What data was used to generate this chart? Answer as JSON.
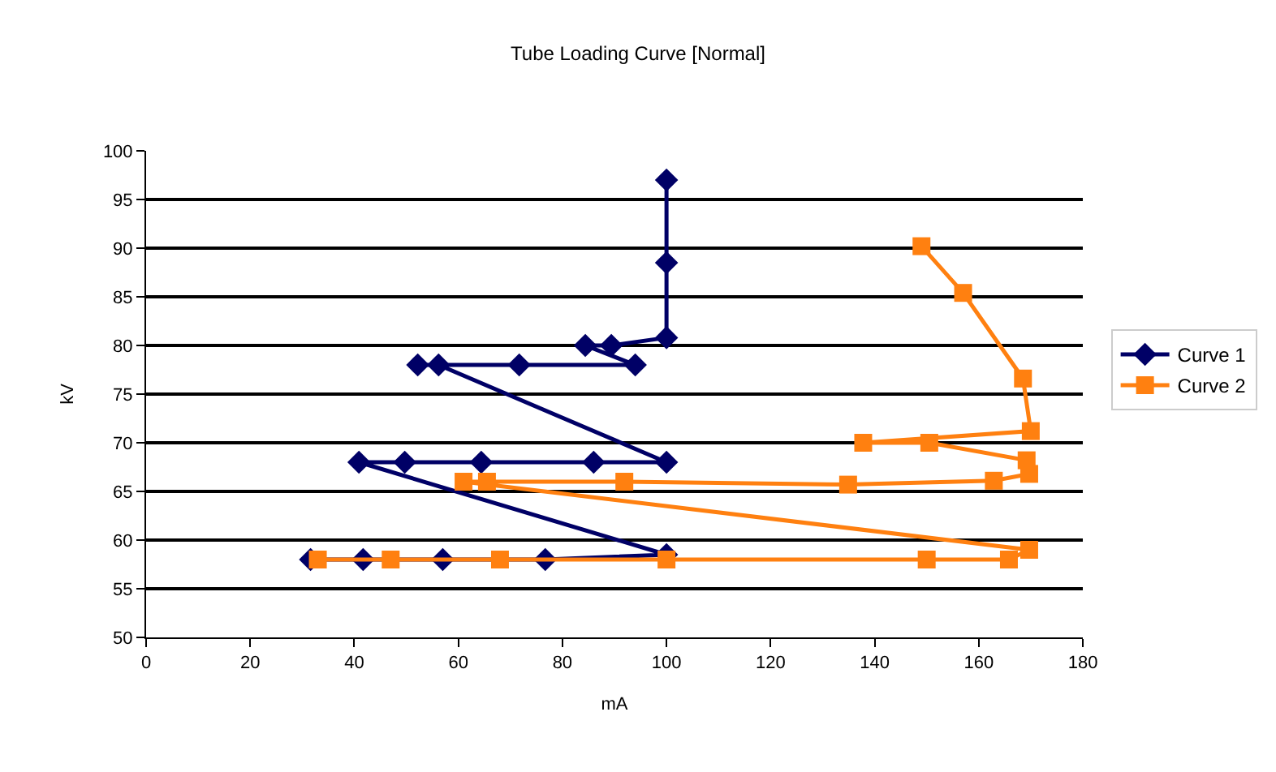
{
  "chart_data": {
    "type": "line",
    "title": "Tube Loading Curve [Normal]",
    "xlabel": "mA",
    "ylabel": "kV",
    "xlim": [
      0,
      180
    ],
    "xticks": [
      0,
      20,
      40,
      60,
      80,
      100,
      120,
      140,
      160,
      180
    ],
    "ylim": [
      50,
      100
    ],
    "yticks": [
      50,
      55,
      60,
      65,
      70,
      75,
      80,
      85,
      90,
      95,
      100
    ],
    "grid": "y",
    "legend": "right",
    "line_style": "solid",
    "series": [
      {
        "name": "Curve 1",
        "color": "#000066",
        "marker": "diamond",
        "x": [
          31.6,
          41.7,
          57,
          76.7,
          100,
          40.9,
          49.7,
          64.4,
          86,
          100,
          56.2,
          52.2,
          71.7,
          94,
          84.4,
          89.4,
          100,
          100,
          100
        ],
        "values": [
          58,
          58,
          58,
          58,
          58.5,
          68,
          68,
          68,
          68,
          68,
          78,
          78,
          78,
          78,
          80,
          80,
          80.8,
          88.5,
          97
        ]
      },
      {
        "name": "Curve 2",
        "color": "#ff8010",
        "marker": "square",
        "x": [
          149,
          157,
          168.5,
          170,
          137.8,
          150.5,
          169.2,
          169.7,
          162.9,
          134.9,
          91.9,
          65.5,
          61,
          169.7,
          165.8,
          150,
          100,
          68,
          47,
          33
        ],
        "values": [
          90.2,
          85.4,
          76.6,
          71.2,
          70,
          70,
          68.2,
          66.8,
          66.1,
          65.7,
          66,
          66,
          66,
          59,
          58,
          58,
          58,
          58,
          58,
          58
        ]
      }
    ]
  }
}
